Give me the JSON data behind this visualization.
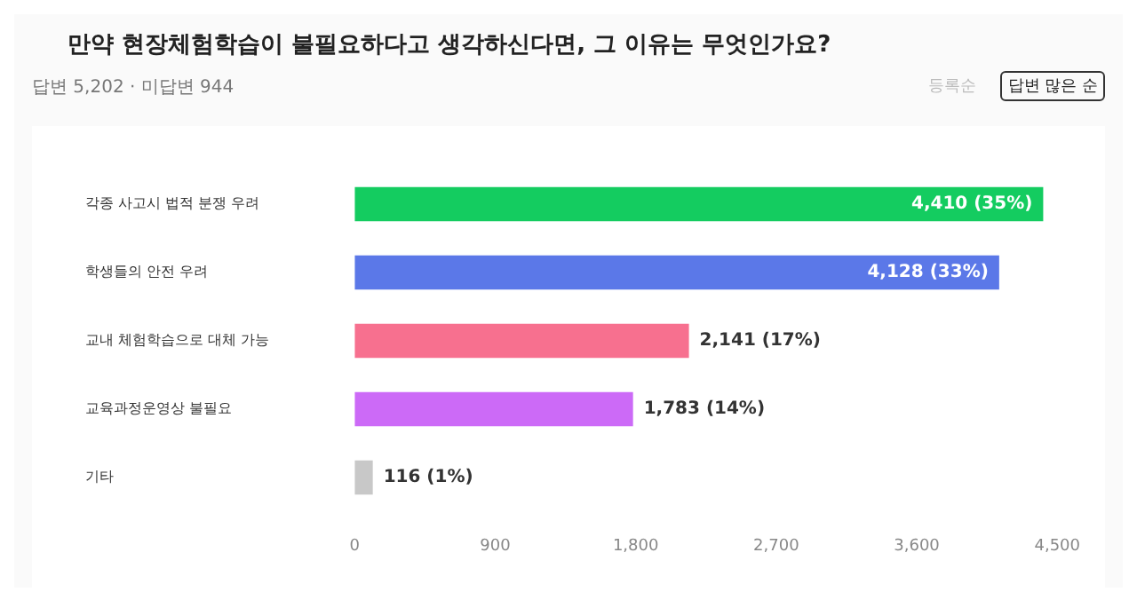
{
  "chart_data": {
    "type": "bar",
    "orientation": "horizontal",
    "title": "만약 현장체험학습이 불필요하다고 생각하신다면, 그 이유는 무엇인가요?",
    "subtitle": "답변 5,202 · 미답변 944",
    "annotations": [
      "등록순",
      "답변 많은 순"
    ],
    "categories": [
      "각종 사고시 법적 분쟁 우려",
      "학생들의 안전 우려",
      "교내 체험학습으로 대체 가능",
      "교육과정운영상 불필요",
      "기타"
    ],
    "values": [
      4410,
      4128,
      2141,
      1783,
      116
    ],
    "colors": [
      "#14cc60",
      "#5b78e8",
      "#f7708f",
      "#cc6af7",
      "#c8c8c8"
    ],
    "value_labels": [
      "4,410 (35%)",
      "4,128 (33%)",
      "2,141 (17%)",
      "1,783 (14%)",
      "116 (1%)"
    ],
    "xlim": [
      0,
      4500
    ],
    "xticks": [
      0,
      {
        "value": 900,
        "label": "900"
      },
      {
        "value": 1800,
        "label": "1,800"
      },
      {
        "value": 2700,
        "label": "2,700"
      },
      {
        "value": 3600,
        "label": "3,600"
      },
      {
        "value": 4500,
        "label": "4,500"
      }
    ],
    "grid": false,
    "legend": false
  }
}
